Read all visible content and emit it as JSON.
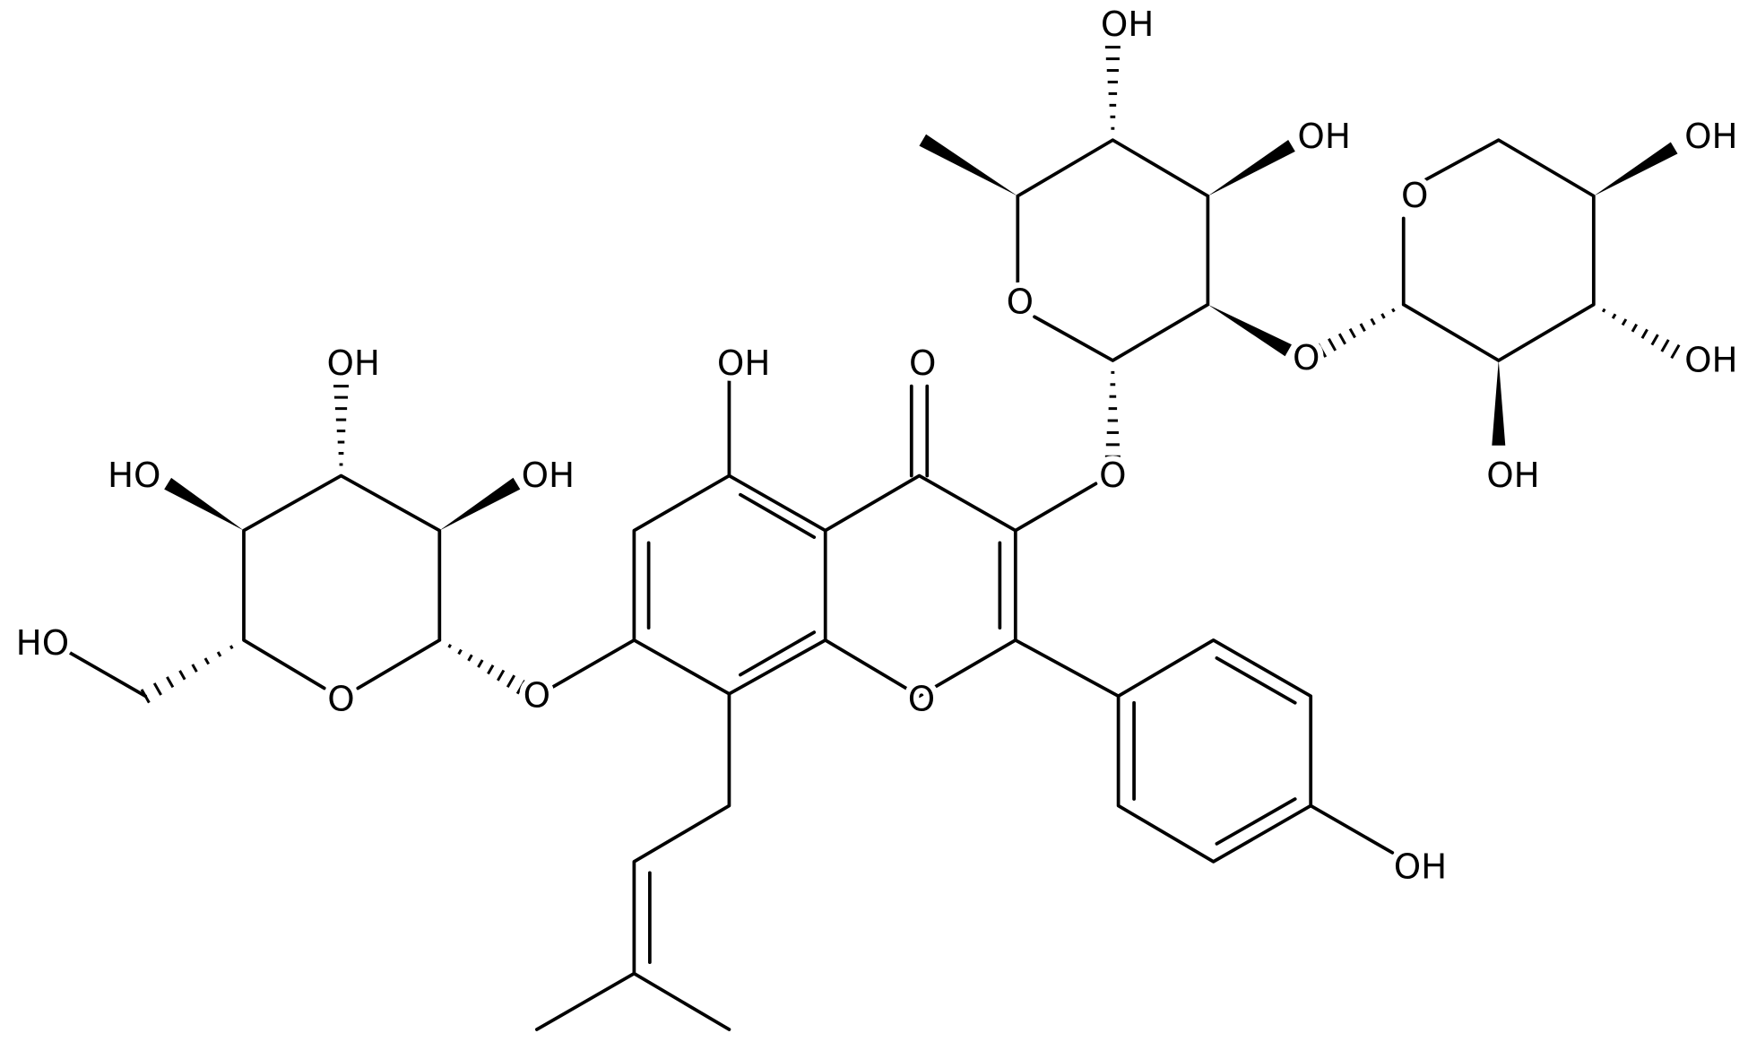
{
  "labels": [
    "OH",
    "O",
    "O",
    "O",
    "O",
    "OH",
    "O",
    "OH",
    "OH",
    "HO",
    "HO",
    "O",
    "OH",
    "OH",
    "O",
    "O",
    "OH",
    "OH",
    "OH"
  ]
}
